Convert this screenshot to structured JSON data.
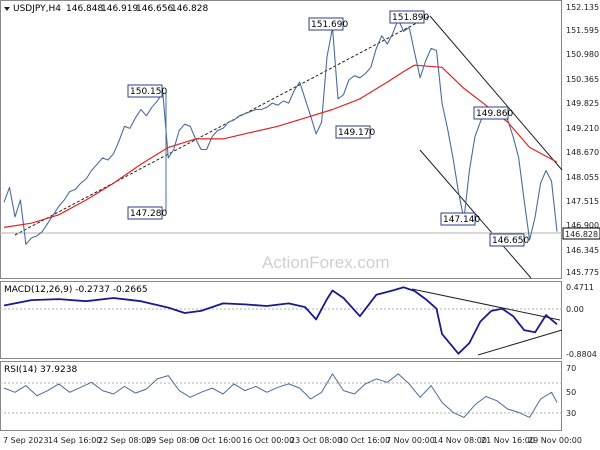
{
  "chart_data": {
    "type": "line",
    "panels": [
      {
        "id": "price",
        "title": "USDJPY,H4",
        "quotes": [
          "146.848",
          "146.919",
          "146.656",
          "146.828"
        ],
        "ylim": [
          145.75,
          152.3
        ],
        "y_ticks": [
          "152.135",
          "151.595",
          "150.980",
          "150.365",
          "149.825",
          "149.210",
          "148.670",
          "148.055",
          "147.515",
          "146.900",
          "146.345",
          "145.775"
        ],
        "last_price": "146.828",
        "series": [
          {
            "name": "USDJPY",
            "color": "#4a6d9b",
            "points": [
              [
                0,
                147.55
              ],
              [
                1,
                147.9
              ],
              [
                2,
                147.2
              ],
              [
                3,
                147.6
              ],
              [
                4,
                146.55
              ],
              [
                5,
                146.7
              ],
              [
                6,
                146.75
              ],
              [
                7,
                146.85
              ],
              [
                8,
                147.05
              ],
              [
                9,
                147.25
              ],
              [
                10,
                147.45
              ],
              [
                11,
                147.6
              ],
              [
                12,
                147.8
              ],
              [
                13,
                147.85
              ],
              [
                14,
                148.0
              ],
              [
                15,
                148.1
              ],
              [
                16,
                148.3
              ],
              [
                17,
                148.45
              ],
              [
                18,
                148.6
              ],
              [
                19,
                148.55
              ],
              [
                20,
                148.7
              ],
              [
                21,
                149.0
              ],
              [
                22,
                149.35
              ],
              [
                23,
                149.3
              ],
              [
                24,
                149.55
              ],
              [
                25,
                149.75
              ],
              [
                26,
                149.6
              ],
              [
                27,
                149.8
              ],
              [
                28,
                149.95
              ],
              [
                29,
                150.15
              ],
              [
                30,
                148.6
              ],
              [
                31,
                148.8
              ],
              [
                32,
                149.25
              ],
              [
                33,
                149.4
              ],
              [
                34,
                149.35
              ],
              [
                35,
                149.05
              ],
              [
                36,
                148.8
              ],
              [
                37,
                148.8
              ],
              [
                38,
                149.1
              ],
              [
                39,
                149.25
              ],
              [
                40,
                149.3
              ],
              [
                41,
                149.45
              ],
              [
                42,
                149.5
              ],
              [
                43,
                149.6
              ],
              [
                44,
                149.65
              ],
              [
                45,
                149.7
              ],
              [
                46,
                149.75
              ],
              [
                47,
                149.75
              ],
              [
                48,
                149.8
              ],
              [
                49,
                149.9
              ],
              [
                50,
                149.85
              ],
              [
                51,
                149.95
              ],
              [
                52,
                149.9
              ],
              [
                53,
                150.2
              ],
              [
                54,
                150.4
              ],
              [
                55,
                150.0
              ],
              [
                56,
                149.6
              ],
              [
                57,
                149.17
              ],
              [
                58,
                149.45
              ],
              [
                59,
                151.0
              ],
              [
                60,
                151.69
              ],
              [
                61,
                150.0
              ],
              [
                62,
                150.1
              ],
              [
                63,
                150.45
              ],
              [
                64,
                150.55
              ],
              [
                65,
                150.5
              ],
              [
                66,
                150.6
              ],
              [
                67,
                150.75
              ],
              [
                68,
                151.2
              ],
              [
                69,
                151.5
              ],
              [
                70,
                151.3
              ],
              [
                71,
                151.55
              ],
              [
                72,
                151.89
              ],
              [
                73,
                151.6
              ],
              [
                74,
                151.7
              ],
              [
                75,
                151.1
              ],
              [
                76,
                150.5
              ],
              [
                77,
                150.9
              ],
              [
                78,
                151.2
              ],
              [
                79,
                151.15
              ],
              [
                80,
                149.9
              ],
              [
                81,
                149.3
              ],
              [
                82,
                148.6
              ],
              [
                83,
                147.8
              ],
              [
                84,
                147.14
              ],
              [
                85,
                148.3
              ],
              [
                86,
                149.1
              ],
              [
                87,
                149.45
              ],
              [
                88,
                149.75
              ],
              [
                89,
                149.7
              ],
              [
                90,
                149.6
              ],
              [
                91,
                149.75
              ],
              [
                92,
                149.5
              ],
              [
                93,
                149.1
              ],
              [
                94,
                148.6
              ],
              [
                95,
                147.6
              ],
              [
                96,
                146.65
              ],
              [
                97,
                147.2
              ],
              [
                98,
                148.0
              ],
              [
                99,
                148.3
              ],
              [
                100,
                148.05
              ],
              [
                101,
                146.85
              ]
            ]
          },
          {
            "name": "MA",
            "color": "#e02424",
            "points": [
              [
                0,
                146.95
              ],
              [
                5,
                147.05
              ],
              [
                10,
                147.25
              ],
              [
                15,
                147.6
              ],
              [
                20,
                148.0
              ],
              [
                25,
                148.45
              ],
              [
                30,
                148.85
              ],
              [
                35,
                149.05
              ],
              [
                40,
                149.05
              ],
              [
                45,
                149.2
              ],
              [
                50,
                149.35
              ],
              [
                55,
                149.55
              ],
              [
                60,
                149.75
              ],
              [
                65,
                150.0
              ],
              [
                70,
                150.4
              ],
              [
                73,
                150.65
              ],
              [
                75,
                150.8
              ],
              [
                80,
                150.75
              ],
              [
                84,
                150.25
              ],
              [
                88,
                149.85
              ],
              [
                92,
                149.45
              ],
              [
                96,
                148.85
              ],
              [
                101,
                148.5
              ]
            ]
          }
        ],
        "annotations": [
          "150.150",
          "147.280",
          "151.690",
          "149.170",
          "151.890",
          "149.860",
          "147.140",
          "146.650"
        ]
      },
      {
        "id": "macd",
        "title": "MACD(12,26,9) -0.2737 -0.2665",
        "ylim": [
          -0.9,
          0.5
        ],
        "y_ticks": [
          "0.4711",
          "0.00",
          "-0.8804"
        ],
        "series": [
          {
            "name": "MACD",
            "color": "#1a1a8c",
            "points": [
              [
                0,
                0.08
              ],
              [
                5,
                0.18
              ],
              [
                10,
                0.2
              ],
              [
                15,
                0.16
              ],
              [
                20,
                0.22
              ],
              [
                25,
                0.16
              ],
              [
                30,
                0.04
              ],
              [
                33,
                -0.06
              ],
              [
                36,
                -0.02
              ],
              [
                40,
                0.12
              ],
              [
                44,
                0.1
              ],
              [
                48,
                0.07
              ],
              [
                52,
                0.12
              ],
              [
                55,
                0.05
              ],
              [
                57,
                -0.18
              ],
              [
                59,
                0.2
              ],
              [
                60,
                0.36
              ],
              [
                62,
                0.22
              ],
              [
                65,
                -0.12
              ],
              [
                68,
                0.28
              ],
              [
                71,
                0.36
              ],
              [
                73,
                0.42
              ],
              [
                75,
                0.35
              ],
              [
                77,
                0.2
              ],
              [
                79,
                0.02
              ],
              [
                80,
                -0.45
              ],
              [
                83,
                -0.82
              ],
              [
                85,
                -0.62
              ],
              [
                87,
                -0.22
              ],
              [
                89,
                -0.02
              ],
              [
                91,
                0.02
              ],
              [
                93,
                -0.12
              ],
              [
                95,
                -0.38
              ],
              [
                97,
                -0.42
              ],
              [
                99,
                -0.1
              ],
              [
                101,
                -0.27
              ]
            ]
          }
        ]
      },
      {
        "id": "rsi",
        "title": "RSI(14) 37.9238",
        "ylim": [
          5,
          85
        ],
        "y_ticks": [
          "70",
          "50",
          "30"
        ],
        "series": [
          {
            "name": "RSI",
            "color": "#4a6d9b",
            "points": [
              [
                0,
                55
              ],
              [
                2,
                50
              ],
              [
                4,
                58
              ],
              [
                6,
                46
              ],
              [
                8,
                52
              ],
              [
                10,
                60
              ],
              [
                12,
                50
              ],
              [
                14,
                56
              ],
              [
                16,
                62
              ],
              [
                18,
                52
              ],
              [
                20,
                48
              ],
              [
                22,
                57
              ],
              [
                24,
                49
              ],
              [
                26,
                54
              ],
              [
                28,
                66
              ],
              [
                30,
                70
              ],
              [
                32,
                52
              ],
              [
                34,
                44
              ],
              [
                36,
                50
              ],
              [
                38,
                55
              ],
              [
                40,
                48
              ],
              [
                42,
                60
              ],
              [
                44,
                52
              ],
              [
                46,
                57
              ],
              [
                48,
                50
              ],
              [
                50,
                56
              ],
              [
                52,
                60
              ],
              [
                54,
                55
              ],
              [
                56,
                42
              ],
              [
                58,
                50
              ],
              [
                60,
                72
              ],
              [
                62,
                52
              ],
              [
                64,
                48
              ],
              [
                66,
                60
              ],
              [
                68,
                66
              ],
              [
                70,
                62
              ],
              [
                72,
                72
              ],
              [
                74,
                60
              ],
              [
                76,
                44
              ],
              [
                78,
                58
              ],
              [
                80,
                38
              ],
              [
                82,
                26
              ],
              [
                84,
                20
              ],
              [
                86,
                35
              ],
              [
                88,
                45
              ],
              [
                90,
                40
              ],
              [
                92,
                30
              ],
              [
                94,
                26
              ],
              [
                96,
                20
              ],
              [
                98,
                42
              ],
              [
                100,
                50
              ],
              [
                101,
                38
              ]
            ]
          }
        ]
      }
    ],
    "x_ticks": [
      "7 Sep 2023",
      "14 Sep 16:00",
      "22 Sep 08:00",
      "29 Sep 08:00",
      "6 Oct 16:00",
      "16 Oct 00:00",
      "23 Oct 08:00",
      "30 Oct 16:00",
      "7 Nov 00:00",
      "14 Nov 08:00",
      "21 Nov 16:00",
      "29 Nov 00:00"
    ],
    "watermark": "ActionForex.com"
  }
}
